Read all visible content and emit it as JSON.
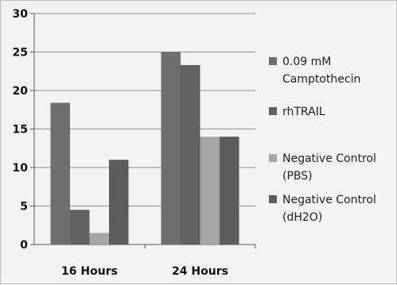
{
  "chart_data": {
    "type": "bar",
    "title": "",
    "xlabel": "",
    "ylabel": "",
    "categories": [
      "16 Hours",
      "24 Hours"
    ],
    "ylim": [
      0,
      30
    ],
    "yticks": [
      0,
      5,
      10,
      15,
      20,
      25,
      30
    ],
    "grid": true,
    "legend_position": "right",
    "series": [
      {
        "name": "0.09 mM Camptothecin",
        "legend_lines": [
          "0.09 mM",
          "Camptothecin"
        ],
        "values": [
          18.4,
          25
        ],
        "color": "#6e6e6e"
      },
      {
        "name": "rhTRAIL",
        "legend_lines": [
          "rhTRAIL"
        ],
        "values": [
          4.5,
          23.3
        ],
        "color": "#626262"
      },
      {
        "name": "Negative Control (PBS)",
        "legend_lines": [
          "Negative Control",
          "(PBS)"
        ],
        "values": [
          1.5,
          14
        ],
        "color": "#a6a6a6"
      },
      {
        "name": "Negative Control (dH2O)",
        "legend_lines": [
          "Negative Control",
          "(dH2O)"
        ],
        "values": [
          11,
          14
        ],
        "color": "#5c5c5c"
      }
    ]
  }
}
